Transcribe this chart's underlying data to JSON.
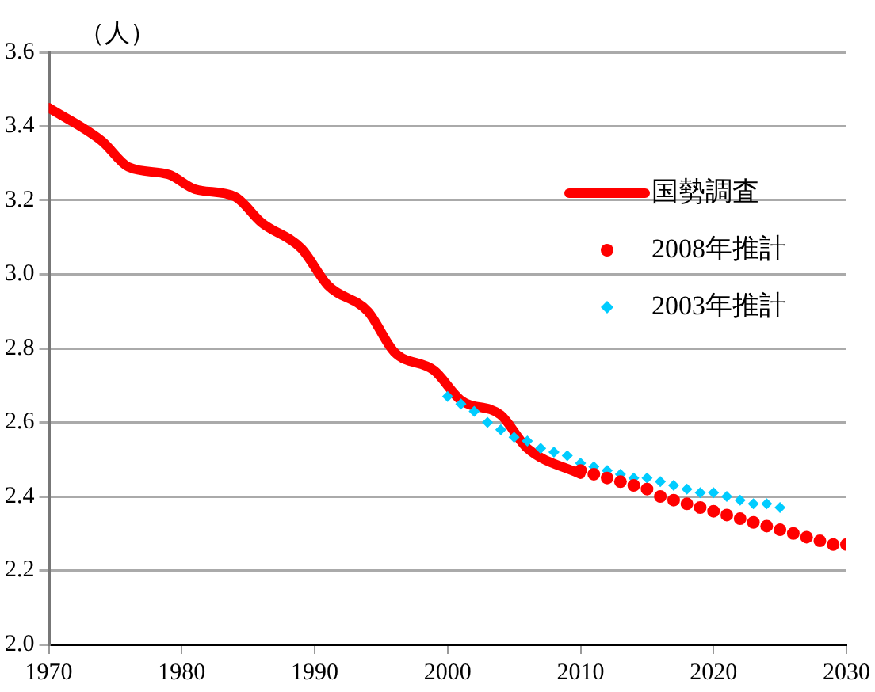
{
  "chart_data": {
    "type": "line",
    "ylabel": "（人）",
    "xlim": [
      1970,
      2030
    ],
    "xticks": [
      1970,
      1980,
      1990,
      2000,
      2010,
      2020,
      2030
    ],
    "ylim": [
      2.0,
      3.6
    ],
    "yticks": [
      {
        "value": 2.0,
        "label": "2.0"
      },
      {
        "value": 2.2,
        "label": "2.2"
      },
      {
        "value": 2.4,
        "label": "2.4"
      },
      {
        "value": 2.6,
        "label": "2.6"
      },
      {
        "value": 2.8,
        "label": "2.8"
      },
      {
        "value": 3.0,
        "label": "3.0"
      },
      {
        "value": 3.2,
        "label": "3.2"
      },
      {
        "value": 3.4,
        "label": "3.4"
      },
      {
        "value": 3.6,
        "label": "3.6"
      }
    ],
    "grid": "y",
    "legend": "right",
    "series": [
      {
        "name": "国勢調査",
        "color": "#ff0000",
        "marker": "none",
        "x": [
          1970,
          1974,
          1976,
          1979,
          1981,
          1984,
          1986,
          1989,
          1991,
          1994,
          1996,
          1999,
          2001,
          2004,
          2006,
          2010
        ],
        "values": [
          3.45,
          3.36,
          3.29,
          3.27,
          3.23,
          3.21,
          3.14,
          3.07,
          2.97,
          2.9,
          2.79,
          2.74,
          2.66,
          2.62,
          2.53,
          2.46
        ]
      },
      {
        "name": "2008年推計",
        "type": "scatter",
        "color": "#ff0000",
        "marker": "circle",
        "x": [
          2010,
          2011,
          2012,
          2013,
          2014,
          2015,
          2016,
          2017,
          2018,
          2019,
          2020,
          2021,
          2022,
          2023,
          2024,
          2025,
          2026,
          2027,
          2028,
          2029,
          2030
        ],
        "values": [
          2.47,
          2.46,
          2.45,
          2.44,
          2.43,
          2.42,
          2.4,
          2.39,
          2.38,
          2.37,
          2.36,
          2.35,
          2.34,
          2.33,
          2.32,
          2.31,
          2.3,
          2.29,
          2.28,
          2.27,
          2.27
        ]
      },
      {
        "name": "2003年推計",
        "type": "scatter",
        "color": "#00ccff",
        "marker": "diamond",
        "x": [
          2000,
          2001,
          2002,
          2003,
          2004,
          2005,
          2006,
          2007,
          2008,
          2009,
          2010,
          2011,
          2012,
          2013,
          2014,
          2015,
          2016,
          2017,
          2018,
          2019,
          2020,
          2021,
          2022,
          2023,
          2024,
          2025
        ],
        "values": [
          2.67,
          2.65,
          2.63,
          2.6,
          2.58,
          2.56,
          2.55,
          2.53,
          2.52,
          2.51,
          2.49,
          2.48,
          2.47,
          2.46,
          2.45,
          2.45,
          2.44,
          2.43,
          2.42,
          2.41,
          2.41,
          2.4,
          2.39,
          2.38,
          2.38,
          2.37
        ]
      }
    ]
  }
}
